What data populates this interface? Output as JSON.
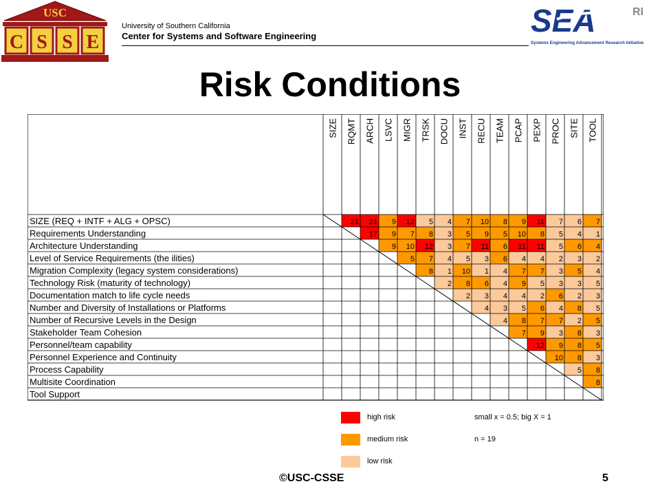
{
  "header": {
    "university": "University of Southern California",
    "center": "Center for Systems and Software Engineering",
    "logo_left": {
      "top": "USC",
      "letters": [
        "C",
        "S",
        "S",
        "E"
      ]
    },
    "logo_right": {
      "main": "SEA",
      "sup": "RI",
      "tagline": "Systems Engineering Advancement Research Initiative"
    }
  },
  "title": "Risk Conditions",
  "matrix": {
    "columns": [
      "SIZE",
      "RQMT",
      "ARCH",
      "LSVC",
      "MIGR",
      "TRSK",
      "DOCU",
      "INST",
      "RECU",
      "TEAM",
      "PCAP",
      "PEXP",
      "PROC",
      "SITE",
      "TOOL"
    ],
    "rows": [
      "SIZE (REQ + INTF + ALG + OPSC)",
      "Requirements Understanding",
      "Architecture Understanding",
      "Level of Service Requirements (the ilities)",
      "Migration Complexity (legacy system considerations)",
      "Technology Risk (maturity of technology)",
      "Documentation match to life cycle needs",
      "Number and Diversity of Installations or Platforms",
      "Number of Recursive Levels in the Design",
      "Stakeholder Team Cohesion",
      "Personnel/team capability",
      "Personnel Experience and Continuity",
      "Process Capability",
      "Multisite Coordination",
      "Tool Support"
    ],
    "cells": [
      [
        "21",
        "21",
        "9",
        "12",
        "5",
        "4",
        "7",
        "10",
        "8",
        "9",
        "11",
        "7",
        "6",
        "7"
      ],
      [
        "17",
        "9",
        "7",
        "8",
        "3",
        "5",
        "9",
        "5",
        "10",
        "8",
        "5",
        "4",
        "1"
      ],
      [
        "9",
        "10",
        "12",
        "3",
        "7",
        "11",
        "6",
        "11",
        "11",
        "5",
        "6",
        "4"
      ],
      [
        "5",
        "7",
        "4",
        "5",
        "3",
        "6",
        "4",
        "4",
        "2",
        "3",
        "2"
      ],
      [
        "8",
        "1",
        "10",
        "1",
        "4",
        "7",
        "7",
        "3",
        "5",
        "4"
      ],
      [
        "2",
        "8",
        "6",
        "4",
        "9",
        "5",
        "3",
        "3",
        "5"
      ],
      [
        "2",
        "3",
        "4",
        "4",
        "2",
        "6",
        "2",
        "3"
      ],
      [
        "4",
        "3",
        "5",
        "6",
        "4",
        "8",
        "5"
      ],
      [
        "4",
        "8",
        "7",
        "7",
        "2",
        "5"
      ],
      [
        "7",
        "9",
        "3",
        "8",
        "3"
      ],
      [
        "12",
        "9",
        "8",
        "5"
      ],
      [
        "10",
        "8",
        "3"
      ],
      [
        "5",
        "8"
      ],
      [
        "8"
      ],
      []
    ],
    "levels": [
      [
        "H",
        "H",
        "M",
        "H",
        "L",
        "L",
        "M",
        "M",
        "M",
        "M",
        "H",
        "L",
        "L",
        "M"
      ],
      [
        "H",
        "M",
        "M",
        "M",
        "L",
        "M",
        "M",
        "M",
        "M",
        "M",
        "L",
        "L",
        "L"
      ],
      [
        "M",
        "M",
        "H",
        "L",
        "M",
        "H",
        "M",
        "H",
        "H",
        "L",
        "M",
        "M"
      ],
      [
        "M",
        "M",
        "L",
        "L",
        "L",
        "M",
        "L",
        "L",
        "L",
        "L",
        "L"
      ],
      [
        "M",
        "L",
        "M",
        "L",
        "L",
        "M",
        "M",
        "L",
        "M",
        "L"
      ],
      [
        "L",
        "M",
        "M",
        "L",
        "M",
        "L",
        "L",
        "L",
        "L"
      ],
      [
        "L",
        "L",
        "L",
        "L",
        "L",
        "M",
        "L",
        "L"
      ],
      [
        "L",
        "L",
        "L",
        "M",
        "L",
        "M",
        "L"
      ],
      [
        "L",
        "M",
        "M",
        "M",
        "L",
        "M"
      ],
      [
        "M",
        "M",
        "L",
        "M",
        "L"
      ],
      [
        "H",
        "M",
        "M",
        "M"
      ],
      [
        "M",
        "M",
        "L"
      ],
      [
        "L",
        "M"
      ],
      [
        "M"
      ],
      []
    ]
  },
  "colors": {
    "high": "#ff0000",
    "medium": "#ff9900",
    "low": "#fcc99b",
    "title": "#000000"
  },
  "legend": {
    "high": "high risk",
    "medium": "medium risk",
    "low": "low risk",
    "scale_note": "small x = 0.5; big X = 1",
    "n_note": "n = 19"
  },
  "footer": {
    "copyright": "©USC-CSSE",
    "page": "5"
  }
}
